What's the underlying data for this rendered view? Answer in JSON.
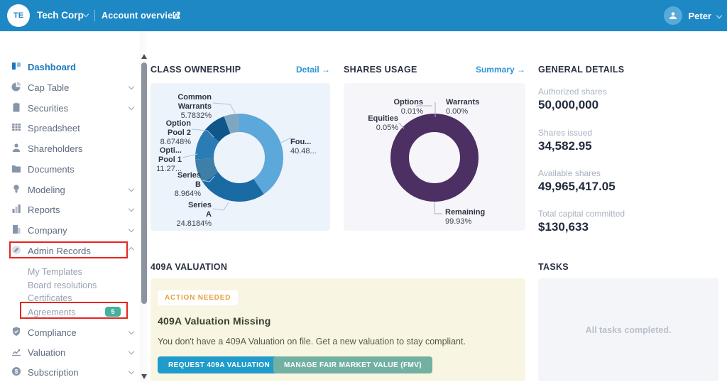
{
  "header": {
    "company_initials": "TE",
    "company_name": "Tech Corp",
    "breadcrumb": "Account overview",
    "user_name": "Peter"
  },
  "sidebar": {
    "items": [
      {
        "label": "Dashboard",
        "icon": "dashboard-icon",
        "active": true
      },
      {
        "label": "Cap Table",
        "icon": "cap-table-icon"
      },
      {
        "label": "Securities",
        "icon": "securities-icon"
      },
      {
        "label": "Spreadsheet",
        "icon": "spreadsheet-icon"
      },
      {
        "label": "Shareholders",
        "icon": "shareholders-icon"
      },
      {
        "label": "Documents",
        "icon": "documents-icon"
      },
      {
        "label": "Modeling",
        "icon": "modeling-icon"
      },
      {
        "label": "Reports",
        "icon": "reports-icon"
      },
      {
        "label": "Company",
        "icon": "company-icon"
      },
      {
        "label": "Admin Records",
        "icon": "admin-records-icon",
        "expanded": true,
        "highlighted": true
      },
      {
        "label": "My Templates",
        "sub": true
      },
      {
        "label": "Board resolutions",
        "sub": true
      },
      {
        "label": "Certificates",
        "sub": true
      },
      {
        "label": "Agreements",
        "sub": true,
        "badge": "5",
        "highlighted": true
      },
      {
        "label": "Compliance",
        "icon": "compliance-icon"
      },
      {
        "label": "Valuation",
        "icon": "valuation-icon"
      },
      {
        "label": "Subscription",
        "icon": "subscription-icon"
      }
    ]
  },
  "class_ownership": {
    "title": "CLASS OWNERSHIP",
    "link": "Detail →"
  },
  "shares_usage": {
    "title": "SHARES USAGE",
    "link": "Summary →"
  },
  "general_details": {
    "title": "GENERAL DETAILS",
    "stats": [
      {
        "label": "Authorized shares",
        "value": "50,000,000"
      },
      {
        "label": "Shares issued",
        "value": "34,582.95"
      },
      {
        "label": "Available shares",
        "value": "49,965,417.05"
      },
      {
        "label": "Total capital committed",
        "value": "$130,633"
      }
    ]
  },
  "valuation_409a": {
    "title": "409A VALUATION",
    "badge": "ACTION NEEDED",
    "heading": "409A Valuation Missing",
    "body": "You don't have a 409A Valuation on file. Get a new valuation to stay compliant.",
    "primary_button": "REQUEST 409A VALUATION",
    "secondary_button": "MANAGE FAIR MARKET VALUE (FMV)"
  },
  "tasks": {
    "title": "TASKS",
    "empty_text": "All tasks completed."
  },
  "chart_data": [
    {
      "type": "pie",
      "donut": true,
      "title": "CLASS OWNERSHIP",
      "labels": [
        "Fou...",
        "Series A",
        "Series B",
        "Opti... Pool 1",
        "Option Pool 2",
        "Common Warrants"
      ],
      "values": [
        40.48,
        24.8184,
        8.964,
        11.27,
        8.6748,
        5.7832
      ],
      "colors": [
        "#5ca8da",
        "#1a6aa4",
        "#3d7fa6",
        "#2b7cb5",
        "#0f5689",
        "#7ea7c2"
      ],
      "legend_position": "callouts-around",
      "callouts": [
        {
          "line1": "Common",
          "line2": "Warrants",
          "value": "5.7832%"
        },
        {
          "line1": "Option",
          "line2": "Pool 2",
          "value": "8.6748%"
        },
        {
          "line1": "Opti...",
          "line2": "Pool 1",
          "value": "11.27..."
        },
        {
          "line1": "Series",
          "line2": "B",
          "value": "8.964%"
        },
        {
          "line1": "Series",
          "line2": "A",
          "value": "24.8184%"
        },
        {
          "line1": "Fou...",
          "line2": "",
          "value": "40.48..."
        }
      ]
    },
    {
      "type": "pie",
      "donut": true,
      "title": "SHARES USAGE",
      "labels": [
        "Warrants",
        "Remaining",
        "Equities",
        "Options"
      ],
      "values": [
        0.0,
        99.93,
        0.05,
        0.01
      ],
      "colors": [
        "#4c2f63",
        "#4c2f63",
        "#7a5f98",
        "#9a84b5"
      ],
      "legend_position": "callouts-around",
      "callouts": [
        {
          "name": "Options",
          "value": "0.01%"
        },
        {
          "name": "Warrants",
          "value": "0.00%"
        },
        {
          "name": "Equities",
          "value": "0.05%"
        },
        {
          "name": "Remaining",
          "value": "99.93%"
        }
      ]
    }
  ]
}
